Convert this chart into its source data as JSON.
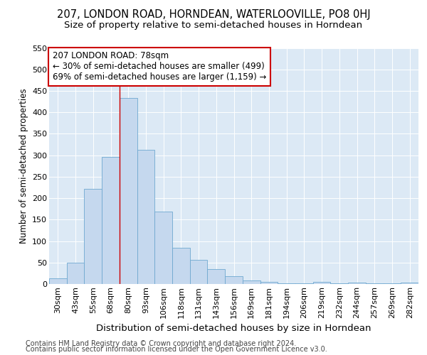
{
  "title": "207, LONDON ROAD, HORNDEAN, WATERLOOVILLE, PO8 0HJ",
  "subtitle": "Size of property relative to semi-detached houses in Horndean",
  "xlabel": "Distribution of semi-detached houses by size in Horndean",
  "ylabel": "Number of semi-detached properties",
  "categories": [
    "30sqm",
    "43sqm",
    "55sqm",
    "68sqm",
    "80sqm",
    "93sqm",
    "106sqm",
    "118sqm",
    "131sqm",
    "143sqm",
    "156sqm",
    "169sqm",
    "181sqm",
    "194sqm",
    "206sqm",
    "219sqm",
    "232sqm",
    "244sqm",
    "257sqm",
    "269sqm",
    "282sqm"
  ],
  "values": [
    14,
    49,
    221,
    296,
    434,
    312,
    168,
    84,
    56,
    35,
    18,
    8,
    5,
    2,
    1,
    5,
    1,
    4,
    1,
    1,
    4
  ],
  "bar_color": "#c5d8ee",
  "bar_edge_color": "#6fa8d0",
  "annotation_label": "207 LONDON ROAD: 78sqm",
  "annotation_line1": "← 30% of semi-detached houses are smaller (499)",
  "annotation_line2": "69% of semi-detached houses are larger (1,159) →",
  "annotation_box_color": "#ffffff",
  "annotation_box_edge": "#cc0000",
  "vline_color": "#cc0000",
  "vline_x_index": 4,
  "ylim": [
    0,
    550
  ],
  "yticks": [
    0,
    50,
    100,
    150,
    200,
    250,
    300,
    350,
    400,
    450,
    500,
    550
  ],
  "background_color": "#dce9f5",
  "footer_line1": "Contains HM Land Registry data © Crown copyright and database right 2024.",
  "footer_line2": "Contains public sector information licensed under the Open Government Licence v3.0.",
  "title_fontsize": 10.5,
  "subtitle_fontsize": 9.5,
  "xlabel_fontsize": 9.5,
  "ylabel_fontsize": 8.5,
  "tick_fontsize": 8,
  "annotation_fontsize": 8.5,
  "footer_fontsize": 7
}
